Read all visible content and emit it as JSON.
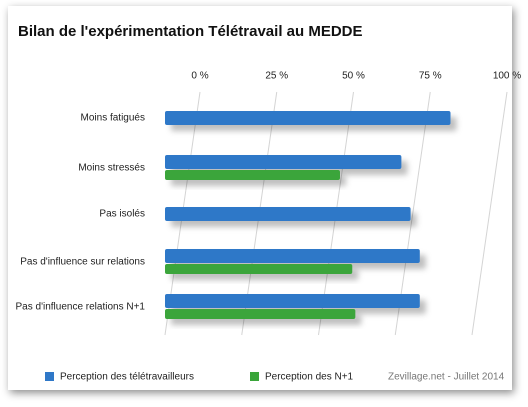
{
  "chart_data": {
    "type": "bar",
    "orientation": "horizontal",
    "title": "Bilan de l'expérimentation Télétravail au MEDDE",
    "categories": [
      "Moins fatigués",
      "Moins stressés",
      "Pas isolés",
      "Pas d'influence sur relations",
      "Pas d'influence relations N+1"
    ],
    "series": [
      {
        "name": "Perception des télétravailleurs",
        "color": "#2f78c8",
        "values": [
          93,
          77,
          80,
          83,
          83
        ]
      },
      {
        "name": "Perception des N+1",
        "color": "#3aa53a",
        "values": [
          null,
          57,
          null,
          61,
          62
        ]
      }
    ],
    "xlim": [
      0,
      100
    ],
    "xticks": [
      {
        "value": 0,
        "label": "0 %"
      },
      {
        "value": 25,
        "label": "25 %"
      },
      {
        "value": 50,
        "label": "50 %"
      },
      {
        "value": 75,
        "label": "75 %"
      },
      {
        "value": 100,
        "label": "100 %"
      }
    ],
    "grid": true,
    "source": "Zevillage.net - Juillet 2014"
  }
}
